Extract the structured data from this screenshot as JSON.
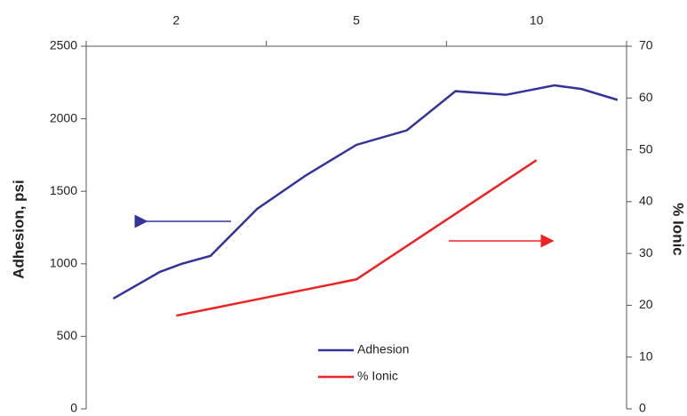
{
  "chart_data": {
    "type": "line",
    "x_axis_position": "top",
    "xlim": [
      0,
      3
    ],
    "xticks": [
      {
        "value": 0.5,
        "label": "2"
      },
      {
        "value": 1.5,
        "label": "5"
      },
      {
        "value": 2.5,
        "label": "10"
      }
    ],
    "ylabel": "Adhesion, psi",
    "y2label": "% Ionic",
    "ylim": [
      0,
      2500
    ],
    "yticks": [
      0,
      500,
      1000,
      1500,
      2000,
      2500
    ],
    "y2lim": [
      0,
      70
    ],
    "y2ticks": [
      0,
      10,
      20,
      30,
      40,
      50,
      60,
      70
    ],
    "series": [
      {
        "name": "Adhesion",
        "color": "#333399",
        "x": [
          0.15,
          0.41,
          0.53,
          0.69,
          0.95,
          1.22,
          1.5,
          1.78,
          2.05,
          2.33,
          2.6,
          2.75,
          2.95
        ],
        "values": [
          760,
          945,
          1000,
          1055,
          1380,
          1610,
          1820,
          1920,
          2190,
          2165,
          2230,
          2205,
          2130
        ]
      },
      {
        "name": "% Ionic",
        "color": "#ee2222",
        "axis": "y2",
        "x": [
          0.5,
          1.5,
          2.5
        ],
        "values": [
          18,
          25,
          48
        ]
      }
    ]
  }
}
